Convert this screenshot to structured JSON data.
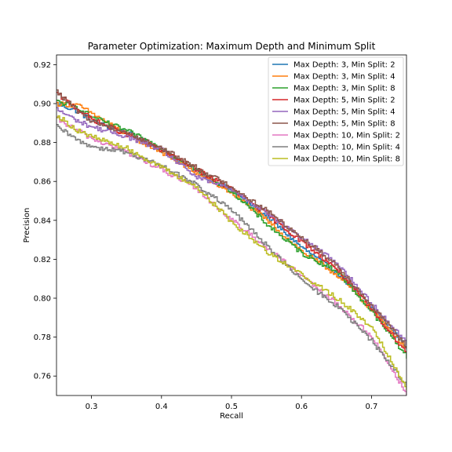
{
  "chart_data": {
    "type": "line",
    "title": "Parameter Optimization: Maximum Depth and Minimum Split",
    "xlabel": "Recall",
    "ylabel": "Precision",
    "xlim": [
      0.25,
      0.75
    ],
    "ylim": [
      0.75,
      0.925
    ],
    "xticks": [
      0.3,
      0.4,
      0.5,
      0.6,
      0.7
    ],
    "yticks": [
      0.76,
      0.78,
      0.8,
      0.82,
      0.84,
      0.86,
      0.88,
      0.9,
      0.92
    ],
    "xtick_labels": [
      "0.3",
      "0.4",
      "0.5",
      "0.6",
      "0.7"
    ],
    "ytick_labels": [
      "0.76",
      "0.78",
      "0.80",
      "0.82",
      "0.84",
      "0.86",
      "0.88",
      "0.90",
      "0.92"
    ],
    "grid": false,
    "legend_position": "top-right",
    "series": [
      {
        "name": "Max Depth: 3, Min Split: 2",
        "color": "#1f77b4",
        "x": [
          0.25,
          0.28,
          0.3,
          0.35,
          0.4,
          0.45,
          0.5,
          0.55,
          0.6,
          0.65,
          0.7,
          0.75
        ],
        "y": [
          0.9,
          0.896,
          0.891,
          0.885,
          0.876,
          0.865,
          0.855,
          0.842,
          0.826,
          0.813,
          0.795,
          0.775
        ]
      },
      {
        "name": "Max Depth: 3, Min Split: 4",
        "color": "#ff7f0e",
        "x": [
          0.25,
          0.28,
          0.3,
          0.35,
          0.4,
          0.45,
          0.5,
          0.55,
          0.6,
          0.65,
          0.7,
          0.75
        ],
        "y": [
          0.9,
          0.899,
          0.895,
          0.884,
          0.875,
          0.864,
          0.854,
          0.84,
          0.824,
          0.812,
          0.794,
          0.774
        ]
      },
      {
        "name": "Max Depth: 3, Min Split: 8",
        "color": "#2ca02c",
        "x": [
          0.25,
          0.28,
          0.3,
          0.35,
          0.4,
          0.45,
          0.5,
          0.55,
          0.6,
          0.65,
          0.7,
          0.75
        ],
        "y": [
          0.901,
          0.898,
          0.893,
          0.886,
          0.877,
          0.866,
          0.855,
          0.838,
          0.823,
          0.814,
          0.793,
          0.77
        ]
      },
      {
        "name": "Max Depth: 5, Min Split: 2",
        "color": "#d62728",
        "x": [
          0.25,
          0.28,
          0.3,
          0.35,
          0.4,
          0.45,
          0.5,
          0.55,
          0.6,
          0.65,
          0.7,
          0.75
        ],
        "y": [
          0.905,
          0.897,
          0.892,
          0.884,
          0.876,
          0.866,
          0.856,
          0.843,
          0.829,
          0.815,
          0.794,
          0.772
        ]
      },
      {
        "name": "Max Depth: 5, Min Split: 4",
        "color": "#9467bd",
        "x": [
          0.25,
          0.28,
          0.3,
          0.35,
          0.4,
          0.45,
          0.5,
          0.55,
          0.6,
          0.65,
          0.7,
          0.75
        ],
        "y": [
          0.897,
          0.891,
          0.888,
          0.883,
          0.876,
          0.862,
          0.856,
          0.844,
          0.831,
          0.818,
          0.797,
          0.777
        ]
      },
      {
        "name": "Max Depth: 5, Min Split: 8",
        "color": "#8c564b",
        "x": [
          0.25,
          0.28,
          0.3,
          0.35,
          0.4,
          0.45,
          0.5,
          0.55,
          0.6,
          0.65,
          0.7,
          0.75
        ],
        "y": [
          0.906,
          0.896,
          0.891,
          0.885,
          0.877,
          0.867,
          0.857,
          0.845,
          0.831,
          0.817,
          0.796,
          0.775
        ]
      },
      {
        "name": "Max Depth: 10, Min Split: 2",
        "color": "#e377c2",
        "x": [
          0.25,
          0.28,
          0.3,
          0.35,
          0.4,
          0.45,
          0.5,
          0.55,
          0.6,
          0.65,
          0.7,
          0.75
        ],
        "y": [
          0.892,
          0.886,
          0.882,
          0.875,
          0.866,
          0.856,
          0.84,
          0.826,
          0.811,
          0.797,
          0.78,
          0.751
        ]
      },
      {
        "name": "Max Depth: 10, Min Split: 4",
        "color": "#7f7f7f",
        "x": [
          0.25,
          0.28,
          0.3,
          0.35,
          0.4,
          0.45,
          0.5,
          0.55,
          0.6,
          0.65,
          0.7,
          0.75
        ],
        "y": [
          0.888,
          0.881,
          0.878,
          0.875,
          0.868,
          0.858,
          0.845,
          0.827,
          0.809,
          0.796,
          0.778,
          0.755
        ]
      },
      {
        "name": "Max Depth: 10, Min Split: 8",
        "color": "#bcbd22",
        "x": [
          0.25,
          0.28,
          0.3,
          0.35,
          0.4,
          0.45,
          0.5,
          0.55,
          0.6,
          0.65,
          0.7,
          0.75
        ],
        "y": [
          0.894,
          0.886,
          0.883,
          0.877,
          0.867,
          0.857,
          0.839,
          0.824,
          0.812,
          0.8,
          0.785,
          0.754
        ]
      }
    ]
  }
}
